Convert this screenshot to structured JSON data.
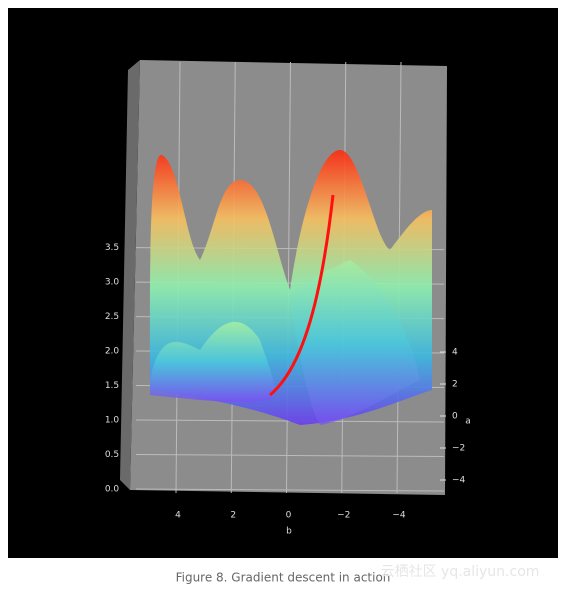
{
  "chart_data": {
    "type": "surface3d",
    "caption": "Figure 8. Gradient descent in action",
    "watermark": "云栖社区 yq.aliyun.com",
    "xlabel": "b",
    "ylabel": "a",
    "xlim": [
      5.5,
      -5.5
    ],
    "xticks": [
      4,
      2,
      0,
      {
        "value": -2,
        "label": "−2"
      },
      {
        "value": -4,
        "label": "−4"
      }
    ],
    "ylim": [
      5,
      -5
    ],
    "yticks": [
      4,
      2,
      0,
      {
        "value": -2,
        "label": "−2"
      },
      {
        "value": -4,
        "label": "−4"
      }
    ],
    "zlim": [
      0,
      3.9
    ],
    "zticks": [
      {
        "value": 0,
        "label": "0.0"
      },
      {
        "value": 0.5,
        "label": "0.5"
      },
      {
        "value": 1,
        "label": "1.0"
      },
      {
        "value": 1.5,
        "label": "1.5"
      },
      {
        "value": 2,
        "label": "2.0"
      },
      {
        "value": 2.5,
        "label": "2.5"
      },
      {
        "value": 3,
        "label": "3.0"
      },
      {
        "value": 3.5,
        "label": "3.5"
      }
    ],
    "grid": true
  }
}
